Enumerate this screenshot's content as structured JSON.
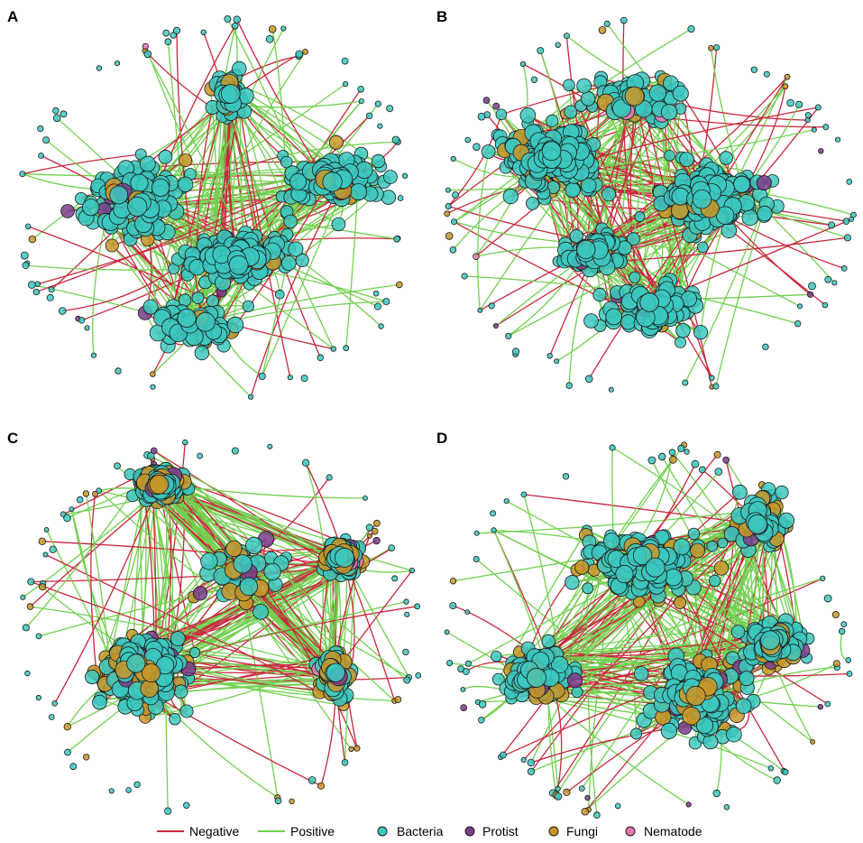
{
  "figure": {
    "panels": [
      {
        "label": "A",
        "network": {
          "lobes": [
            [
              0.56,
              0.64,
              0.3,
              0.16,
              0.5
            ],
            [
              0.3,
              0.48,
              0.35,
              0.26,
              0.4
            ],
            [
              0.8,
              0.42,
              0.3,
              0.22,
              0.3
            ],
            [
              0.54,
              0.18,
              0.1,
              0.15,
              0.15
            ],
            [
              0.45,
              0.82,
              0.3,
              0.16,
              0.2
            ]
          ],
          "fungi": 0.08,
          "protist": 0.03,
          "nematode": 0.01,
          "negative": 0.28
        }
      },
      {
        "label": "B",
        "network": {
          "lobes": [
            [
              0.26,
              0.36,
              0.32,
              0.26,
              0.5
            ],
            [
              0.66,
              0.48,
              0.3,
              0.24,
              0.5
            ],
            [
              0.46,
              0.2,
              0.3,
              0.16,
              0.2
            ],
            [
              0.5,
              0.78,
              0.32,
              0.18,
              0.25
            ],
            [
              0.36,
              0.62,
              0.18,
              0.12,
              0.2
            ]
          ],
          "fungi": 0.07,
          "protist": 0.03,
          "nematode": 0.01,
          "negative": 0.35
        }
      },
      {
        "label": "C",
        "network": {
          "lobes": [
            [
              0.32,
              0.62,
              0.26,
              0.22,
              0.6
            ],
            [
              0.36,
              0.1,
              0.14,
              0.1,
              0.4
            ],
            [
              0.56,
              0.34,
              0.28,
              0.28,
              0.15
            ],
            [
              0.82,
              0.3,
              0.1,
              0.1,
              0.3
            ],
            [
              0.8,
              0.62,
              0.1,
              0.14,
              0.2
            ]
          ],
          "fungi": 0.28,
          "protist": 0.07,
          "nematode": 0.01,
          "negative": 0.35
        }
      },
      {
        "label": "D",
        "network": {
          "lobes": [
            [
              0.5,
              0.32,
              0.36,
              0.22,
              0.5
            ],
            [
              0.62,
              0.68,
              0.34,
              0.28,
              0.4
            ],
            [
              0.22,
              0.62,
              0.22,
              0.16,
              0.3
            ],
            [
              0.82,
              0.54,
              0.18,
              0.14,
              0.3
            ],
            [
              0.78,
              0.2,
              0.18,
              0.18,
              0.2
            ]
          ],
          "fungi": 0.18,
          "protist": 0.04,
          "nematode": 0.0,
          "negative": 0.3
        }
      }
    ]
  },
  "legend": {
    "edges": [
      {
        "label": "Negative",
        "color": "#c8283c"
      },
      {
        "label": "Positive",
        "color": "#72d050"
      }
    ],
    "nodes": [
      {
        "label": "Bacteria",
        "color": "#3cc8c0",
        "icon": "bacteria-node-icon"
      },
      {
        "label": "Protist",
        "color": "#7a3c8c",
        "icon": "protist-node-icon"
      },
      {
        "label": "Fungi",
        "color": "#c89628",
        "icon": "fungi-node-icon"
      },
      {
        "label": "Nematode",
        "color": "#e678b4",
        "icon": "nematode-node-icon"
      }
    ]
  }
}
